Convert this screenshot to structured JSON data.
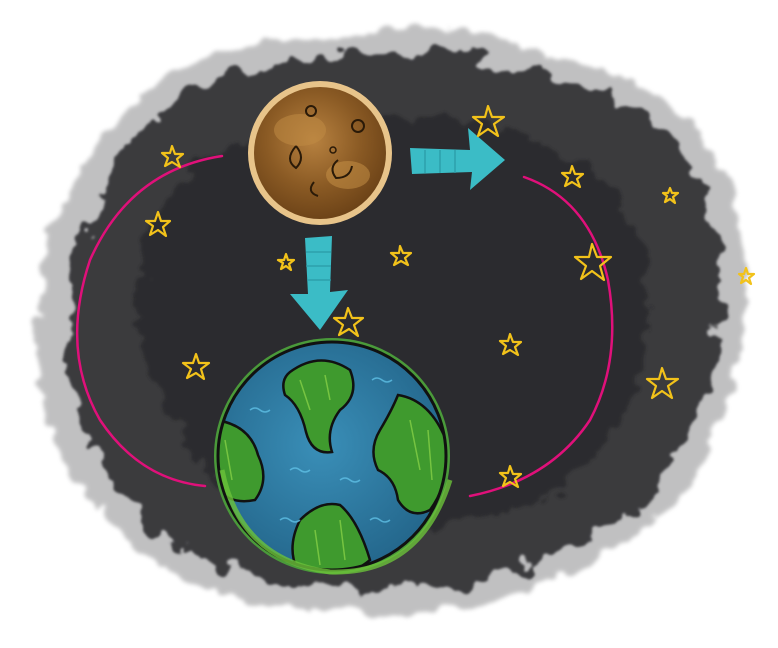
{
  "scene": {
    "elements": [
      "space-cloud",
      "moon",
      "earth",
      "orbit-arc-left",
      "orbit-arc-right",
      "arrow-down",
      "arrow-right",
      "stars"
    ]
  },
  "colors": {
    "background": "#ffffff",
    "space_dark": "#2b2b2e",
    "space_mid": "#4a4a4e",
    "space_light": "#9a9a9c",
    "moon_fill": "#8a5a24",
    "moon_light": "#b07a38",
    "moon_rim": "#e8c48a",
    "earth_ocean": "#2f7ea8",
    "earth_land": "#3f9a2e",
    "earth_land_light": "#6cc23a",
    "outline": "#111111",
    "orbit": "#e0107a",
    "arrow": "#3bbcc6",
    "star": "#f2c21a"
  },
  "icons": {
    "moon": "moon-icon",
    "earth": "earth-icon",
    "arrow_down": "arrow-down-icon",
    "arrow_right": "arrow-right-icon",
    "star": "star-icon"
  }
}
